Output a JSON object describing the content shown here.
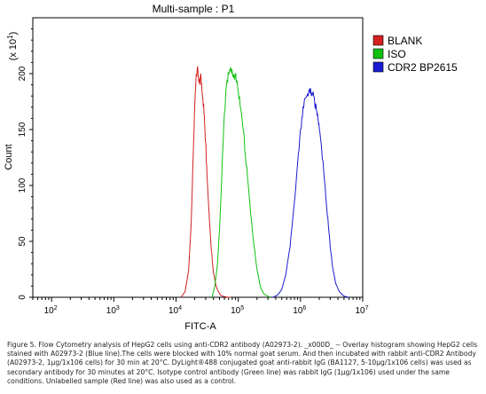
{
  "chart_data": {
    "type": "line",
    "title": "Multi-sample : P1",
    "xlabel": "FITC-A",
    "ylabel": "Count",
    "y_multiplier_label": "(x 10",
    "y_multiplier_exp": "1",
    "y_multiplier_close": ")",
    "x_scale": "log",
    "xlim": [
      50,
      10000000
    ],
    "ylim": [
      0,
      250
    ],
    "x_ticks": [
      {
        "value": 100,
        "base": "10",
        "exp": "2"
      },
      {
        "value": 1000,
        "base": "10",
        "exp": "3"
      },
      {
        "value": 10000,
        "base": "10",
        "exp": "4"
      },
      {
        "value": 100000,
        "base": "10",
        "exp": "5"
      },
      {
        "value": 1000000,
        "base": "10",
        "exp": "6"
      },
      {
        "value": 10000000,
        "base": "10",
        "exp": "7"
      }
    ],
    "y_ticks": [
      {
        "value": 0,
        "label": "0"
      },
      {
        "value": 50,
        "label": "50"
      },
      {
        "value": 100,
        "label": "100"
      },
      {
        "value": 150,
        "label": "150"
      },
      {
        "value": 200,
        "label": "200"
      }
    ],
    "grid": false,
    "legend_position": "right",
    "series": [
      {
        "name": "BLANK",
        "color": "#d42020",
        "x": [
          12000,
          14000,
          16000,
          17500,
          19000,
          20000,
          21000,
          22000,
          23000,
          24000,
          25000,
          26000,
          27000,
          28000,
          29000,
          30000,
          31000,
          32000,
          34000,
          36000,
          38000,
          40000,
          44000,
          48000,
          52000,
          56000,
          62000,
          68000,
          75000
        ],
        "y": [
          0,
          5,
          25,
          65,
          130,
          172,
          198,
          205,
          196,
          190,
          200,
          186,
          178,
          168,
          152,
          138,
          118,
          102,
          75,
          52,
          35,
          22,
          10,
          5,
          2,
          1,
          0.5,
          0,
          0
        ]
      },
      {
        "name": "ISO",
        "color": "#10c010",
        "x": [
          38000,
          42000,
          46000,
          50000,
          55000,
          60000,
          65000,
          70000,
          75000,
          80000,
          85000,
          90000,
          95000,
          100000,
          110000,
          120000,
          130000,
          145000,
          160000,
          180000,
          200000,
          225000,
          250000,
          275000,
          300000,
          330000
        ],
        "y": [
          0,
          10,
          28,
          60,
          115,
          165,
          190,
          200,
          205,
          202,
          196,
          200,
          192,
          185,
          168,
          150,
          128,
          100,
          72,
          45,
          25,
          10,
          4,
          2,
          1,
          0
        ]
      },
      {
        "name": "CDR2 BP2615",
        "color": "#1a1ad2",
        "x": [
          360000,
          430000,
          500000,
          580000,
          680000,
          780000,
          900000,
          1000000,
          1100000,
          1200000,
          1300000,
          1400000,
          1500000,
          1600000,
          1700000,
          1800000,
          1900000,
          2000000,
          2200000,
          2400000,
          2600000,
          2800000,
          3000000,
          3300000,
          3700000,
          4200000,
          5000000,
          6000000
        ],
        "y": [
          0,
          2,
          7,
          20,
          45,
          80,
          120,
          150,
          170,
          178,
          182,
          186,
          180,
          184,
          172,
          168,
          160,
          152,
          130,
          108,
          85,
          65,
          45,
          26,
          12,
          5,
          1,
          0
        ]
      }
    ]
  },
  "caption": "Figure 5. Flow Cytometry analysis of HepG2 cells using anti-CDR2 antibody (A02973-2). _x000D_ -- Overlay histogram showing HepG2 cells stained with A02973-2 (Blue line).The cells were blocked with 10% normal goat serum. And then incubated with rabbit anti-CDR2 Antibody (A02973-2, 1µg/1x106 cells) for 30 min at 20°C. DyLight®488 conjugated goat anti-rabbit IgG (BA1127, 5-10µg/1x106 cells) was used as secondary antibody for 30 minutes at 20°C. Isotype control antibody (Green line) was rabbit IgG (1µg/1x106) used under the same conditions. Unlabelled sample (Red line) was also used as a control."
}
